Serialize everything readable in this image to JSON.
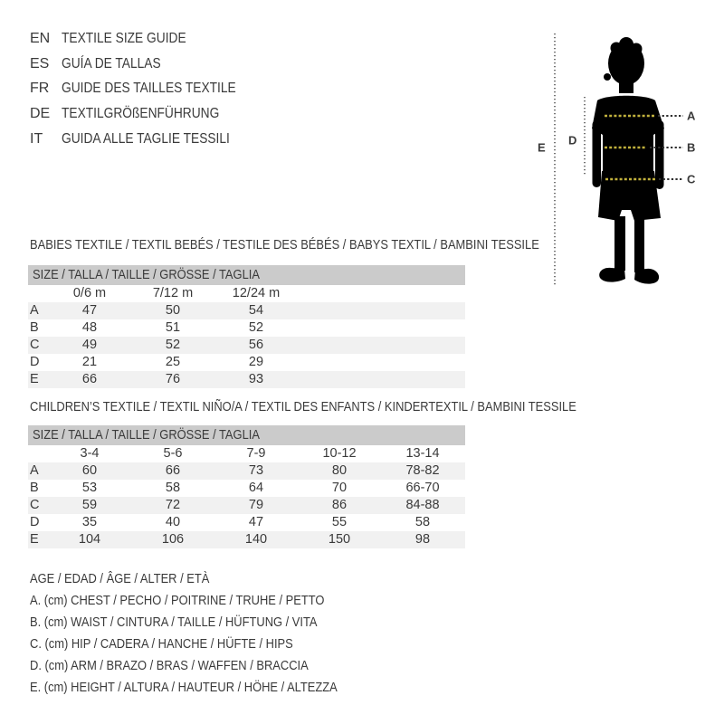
{
  "languages": [
    {
      "code": "EN",
      "title": "TEXTILE SIZE GUIDE"
    },
    {
      "code": "ES",
      "title": "GUÍA DE TALLAS"
    },
    {
      "code": "FR",
      "title": "GUIDE DES TAILLES TEXTILE"
    },
    {
      "code": "DE",
      "title": "TEXTILGRÖßENFÜHRUNG"
    },
    {
      "code": "IT",
      "title": "GUIDA ALLE TAGLIE TESSILI"
    }
  ],
  "figure": {
    "measure_labels": {
      "chest": "A",
      "waist": "B",
      "hip": "C",
      "arm": "D",
      "height": "E"
    },
    "accent_yellow": "#c1b13d",
    "silhouette_color": "#000000"
  },
  "babies_table": {
    "title": "BABIES TEXTILE / TEXTIL BEBÉS / TESTILE DES BÉBÉS / BABYS TEXTIL / BAMBINI TESSILE",
    "size_header": "SIZE / TALLA / TAILLE / GRÖSSE / TAGLIA",
    "columns": [
      "0/6 m",
      "7/12 m",
      "12/24 m"
    ],
    "rows": [
      {
        "label": "A",
        "values": [
          "47",
          "50",
          "54"
        ]
      },
      {
        "label": "B",
        "values": [
          "48",
          "51",
          "52"
        ]
      },
      {
        "label": "C",
        "values": [
          "49",
          "52",
          "56"
        ]
      },
      {
        "label": "D",
        "values": [
          "21",
          "25",
          "29"
        ]
      },
      {
        "label": "E",
        "values": [
          "66",
          "76",
          "93"
        ]
      }
    ]
  },
  "children_table": {
    "title": "CHILDREN’S TEXTILE / TEXTIL NIÑO/A / TEXTIL DES ENFANTS / KINDERTEXTIL / BAMBINI TESSILE",
    "size_header": "SIZE / TALLA / TAILLE / GRÖSSE / TAGLIA",
    "columns": [
      "3-4",
      "5-6",
      "7-9",
      "10-12",
      "13-14"
    ],
    "rows": [
      {
        "label": "A",
        "values": [
          "60",
          "66",
          "73",
          "80",
          "78-82"
        ]
      },
      {
        "label": "B",
        "values": [
          "53",
          "58",
          "64",
          "70",
          "66-70"
        ]
      },
      {
        "label": "C",
        "values": [
          "59",
          "72",
          "79",
          "86",
          "84-88"
        ]
      },
      {
        "label": "D",
        "values": [
          "35",
          "40",
          "47",
          "55",
          "58"
        ]
      },
      {
        "label": "E",
        "values": [
          "104",
          "106",
          "140",
          "150",
          "98"
        ]
      }
    ]
  },
  "legend": [
    "AGE / EDAD / ÂGE / ALTER / ETÀ",
    "A. (cm) CHEST / PECHO / POITRINE / TRUHE / PETTO",
    "B. (cm) WAIST / CINTURA / TAILLE / HÜFTUNG / VITA",
    "C. (cm) HIP / CADERA / HANCHE / HÜFTE / HIPS",
    "D. (cm) ARM / BRAZO / BRAS / WAFFEN / BRACCIA",
    "E. (cm) HEIGHT / ALTURA / HAUTEUR / HÖHE / ALTEZZA"
  ],
  "colors": {
    "text": "#3a3a3a",
    "table_header_bg": "#cbcbcb",
    "row_stripe_bg": "#f1f1f1"
  }
}
